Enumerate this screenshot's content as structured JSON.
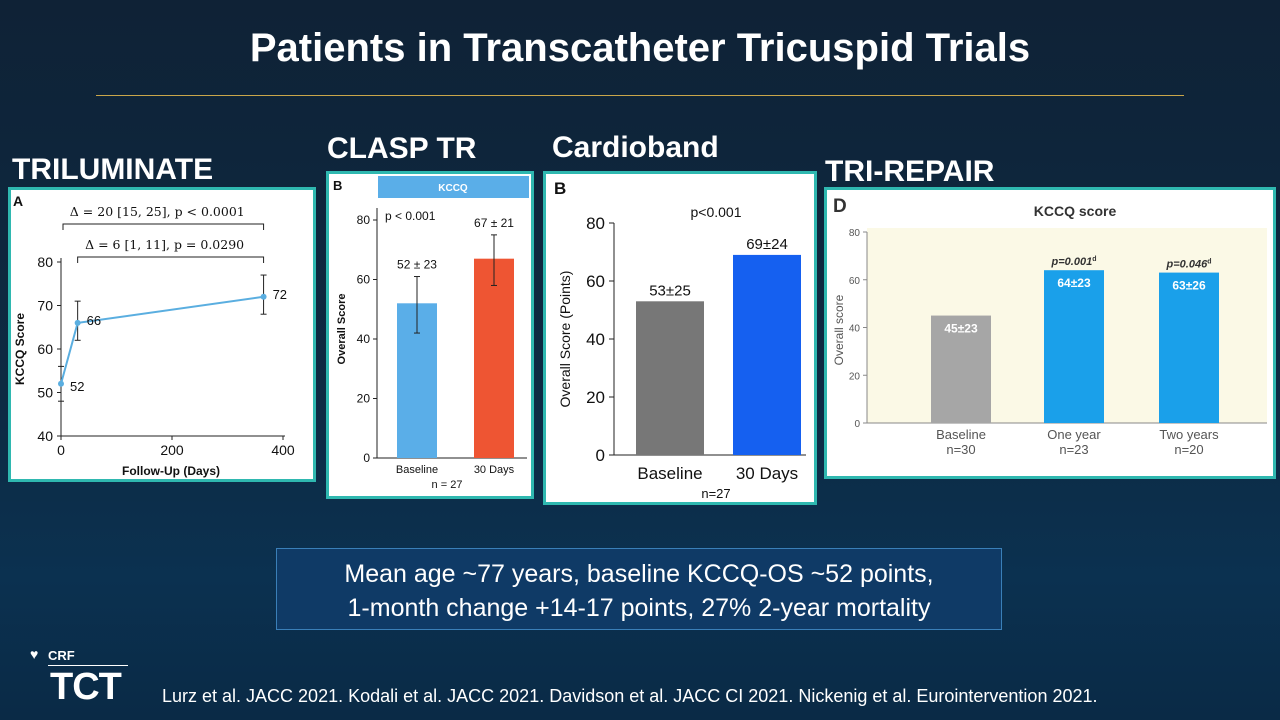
{
  "title": "Patients in Transcatheter Tricuspid Trials",
  "panel_labels": {
    "triluminate": "TRILUMINATE",
    "clasp": "CLASP TR",
    "cardioband": "Cardioband",
    "trirepair": "TRI-REPAIR"
  },
  "summary": {
    "line1": "Mean age ~77 years, baseline KCCQ-OS ~52 points,",
    "line2": "1-month change +14-17 points, 27% 2-year mortality"
  },
  "references": "Lurz et al. JACC 2021. Kodali et al. JACC 2021. Davidson et al. JACC CI 2021. Nickenig et al. Eurointervention 2021.",
  "logo": {
    "crf": "CRF",
    "tct": "TCT"
  },
  "colors": {
    "teal_border": "#2fb8b0",
    "line_blue": "#5aaee0",
    "clasp_baseline": "#5aaee8",
    "clasp_30d": "#ee5533",
    "cb_baseline": "#777777",
    "cb_30d": "#1560f0",
    "tr_baseline": "#a6a6a6",
    "tr_followup": "#1aa0ea"
  },
  "chart_data": [
    {
      "type": "line",
      "panel": "A",
      "x": [
        0,
        30,
        365
      ],
      "y": [
        52,
        66,
        72
      ],
      "point_labels": [
        "52",
        "66",
        "72"
      ],
      "error": [
        [
          48,
          56
        ],
        [
          62,
          71
        ],
        [
          68,
          77
        ]
      ],
      "xlabel": "Follow-Up (Days)",
      "ylabel": "KCCQ Score",
      "xlim": [
        0,
        400
      ],
      "ylim": [
        40,
        80
      ],
      "xticks": [
        0,
        200,
        400
      ],
      "yticks": [
        40,
        50,
        60,
        70,
        80
      ],
      "brackets": [
        {
          "text": "Δ = 20 [15, 25], p < 0.0001",
          "from": 0,
          "to": 365
        },
        {
          "text": "Δ = 6 [1, 11], p = 0.0290",
          "from": 30,
          "to": 365
        }
      ]
    },
    {
      "type": "bar",
      "panel": "B",
      "header": "KCCQ",
      "categories": [
        "Baseline",
        "30 Days"
      ],
      "values": [
        52,
        67
      ],
      "value_labels": [
        "52 ± 23",
        "67 ± 21"
      ],
      "error": [
        [
          42,
          61
        ],
        [
          58,
          75
        ]
      ],
      "ylabel": "Overall Score",
      "ylim": [
        0,
        80
      ],
      "yticks": [
        0,
        20,
        40,
        60,
        80
      ],
      "annotation": "p < 0.001",
      "n": "n = 27"
    },
    {
      "type": "bar",
      "panel": "B",
      "categories": [
        "Baseline",
        "30 Days"
      ],
      "values": [
        53,
        69
      ],
      "value_labels": [
        "53±25",
        "69±24"
      ],
      "ylabel": "Overall Score (Points)",
      "ylim": [
        0,
        80
      ],
      "yticks": [
        0,
        20,
        40,
        60,
        80
      ],
      "annotation": "p<0.001",
      "n": "n=27"
    },
    {
      "type": "bar",
      "panel": "D",
      "title": "KCCQ score",
      "categories": [
        "Baseline",
        "One year",
        "Two years"
      ],
      "sublabels": [
        "n=30",
        "n=23",
        "n=20"
      ],
      "values": [
        45,
        64,
        63
      ],
      "value_labels": [
        "45±23",
        "64±23",
        "63±26"
      ],
      "p_labels": [
        "",
        "p=0.001",
        "p=0.046"
      ],
      "p_sup": [
        "",
        "d",
        "d"
      ],
      "ylabel": "Overall score",
      "ylim": [
        0,
        80
      ],
      "yticks": [
        0,
        20,
        40,
        60,
        80
      ]
    }
  ]
}
